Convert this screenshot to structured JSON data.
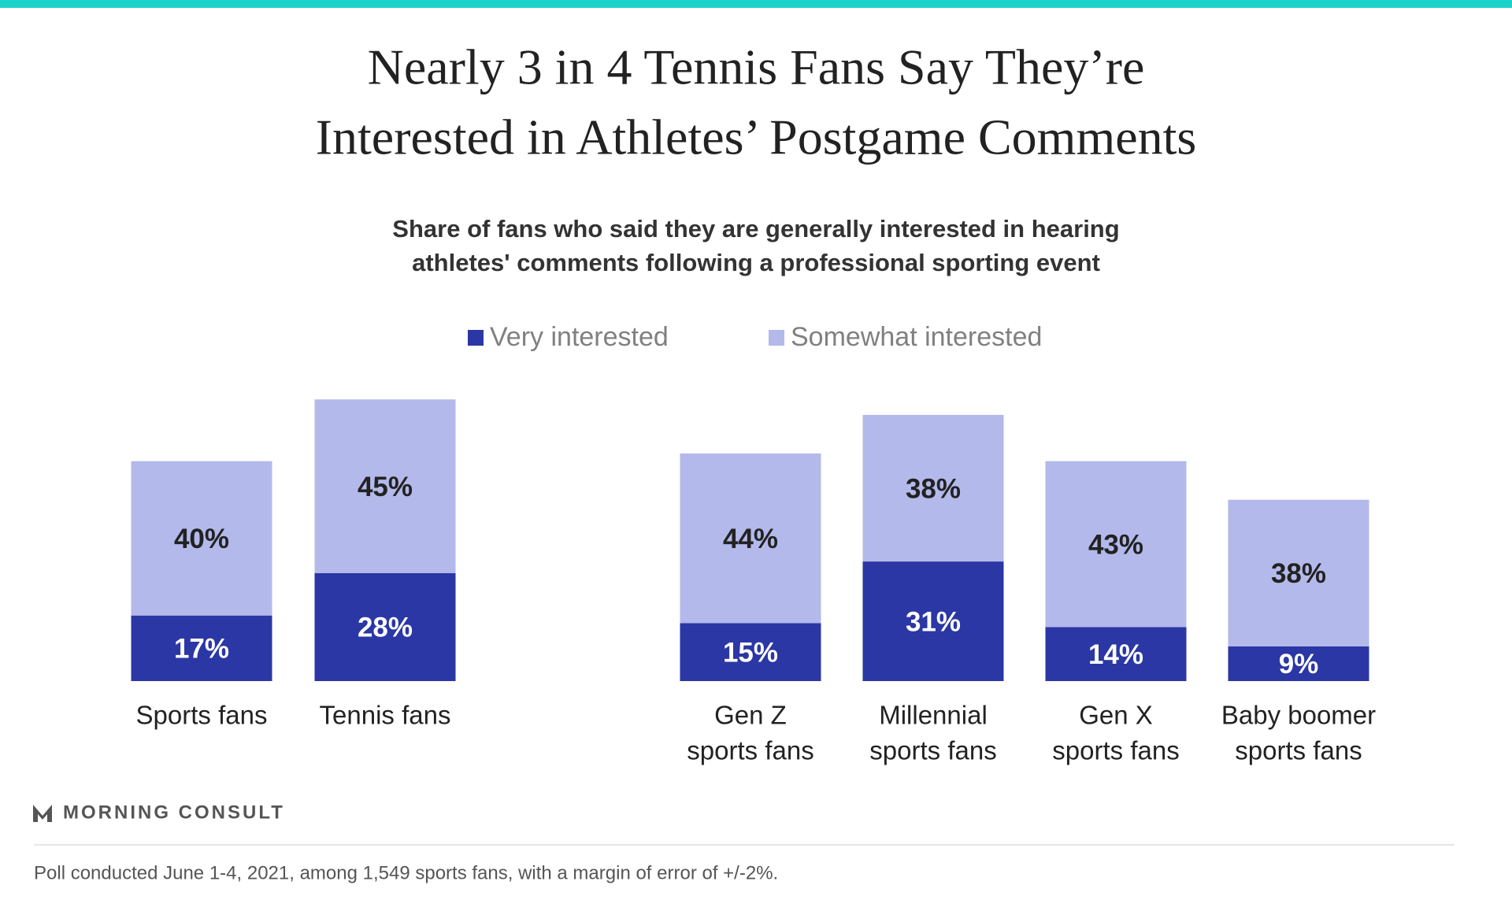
{
  "chart_data": {
    "type": "stacked_bar",
    "title": [
      "Nearly 3 in 4 Tennis Fans Say They’re",
      "Interested in Athletes’ Postgame Comments"
    ],
    "subtitle": [
      "Share of fans who said they are generally interested in hearing",
      "athletes' comments following a professional sporting event"
    ],
    "categories": [
      [
        "Sports fans"
      ],
      [
        "Tennis fans"
      ],
      [
        "Gen Z",
        "sports fans"
      ],
      [
        "Millennial",
        "sports fans"
      ],
      [
        "Gen X",
        "sports fans"
      ],
      [
        "Baby boomer",
        "sports fans"
      ]
    ],
    "series": [
      {
        "name": "Very interested",
        "color": "#2b37a4",
        "values": [
          17,
          28,
          15,
          31,
          14,
          9
        ],
        "value_labels": [
          "17%",
          "28%",
          "15%",
          "31%",
          "14%",
          "9%"
        ]
      },
      {
        "name": "Somewhat interested",
        "color": "#b3b9ea",
        "values": [
          40,
          45,
          44,
          38,
          43,
          38
        ],
        "value_labels": [
          "40%",
          "45%",
          "44%",
          "38%",
          "43%",
          "38%"
        ]
      }
    ]
  },
  "brand": "MORNING CONSULT",
  "note": "Poll conducted June 1-4, 2021, among 1,549 sports fans, with a margin of error of +/-2%."
}
